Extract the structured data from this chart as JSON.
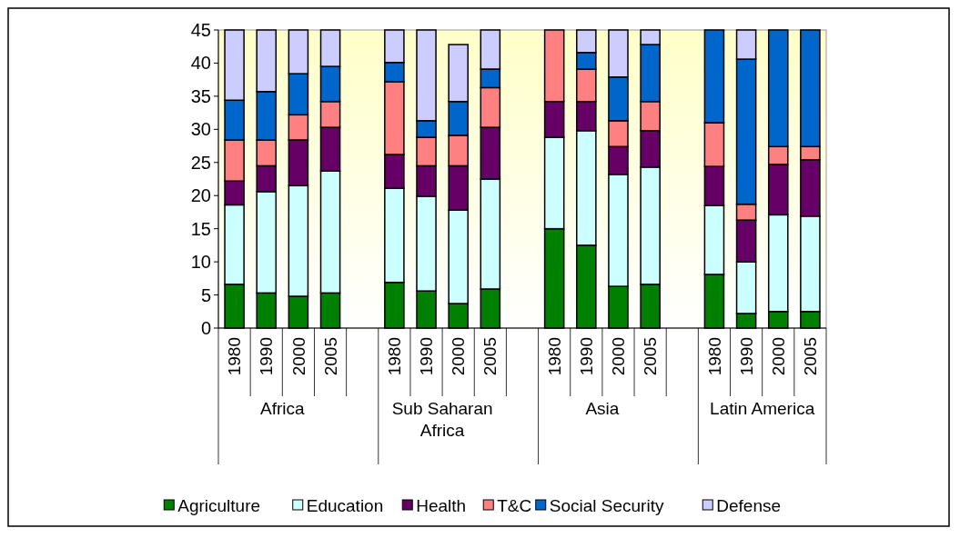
{
  "chart_data": {
    "type": "bar",
    "stacked": true,
    "categories": [
      "1980",
      "1990",
      "2000",
      "2005",
      null,
      "1980",
      "1990",
      "2000",
      "2005",
      null,
      "1980",
      "1990",
      "2000",
      "2005",
      null,
      "1980",
      "1990",
      "2000",
      "2005"
    ],
    "annotations": [
      "Africa",
      "Sub Saharan Africa",
      "Asia",
      "Latin America"
    ],
    "series": [
      {
        "name": "Agriculture",
        "color": "#008000",
        "values": [
          6.6,
          5.3,
          4.8,
          5.3,
          null,
          6.9,
          5.6,
          3.7,
          5.9,
          null,
          15.0,
          12.5,
          6.3,
          6.6,
          null,
          8.1,
          2.2,
          2.5,
          2.5
        ]
      },
      {
        "name": "Education",
        "color": "#ccffff",
        "values": [
          12.0,
          15.3,
          16.7,
          18.4,
          null,
          14.2,
          14.3,
          14.1,
          16.6,
          null,
          13.8,
          17.3,
          16.9,
          17.7,
          null,
          10.4,
          7.8,
          14.6,
          14.4
        ]
      },
      {
        "name": "Health",
        "color": "#660066",
        "values": [
          3.6,
          3.9,
          6.9,
          6.6,
          null,
          5.1,
          4.6,
          6.7,
          7.8,
          null,
          5.4,
          4.4,
          4.2,
          5.5,
          null,
          5.9,
          6.3,
          7.6,
          8.5
        ]
      },
      {
        "name": "T&C",
        "color": "#ff8080",
        "values": [
          6.2,
          3.9,
          3.8,
          3.9,
          null,
          11.0,
          4.3,
          4.6,
          6.0,
          null,
          10.8,
          4.9,
          3.9,
          4.4,
          null,
          6.6,
          2.4,
          2.7,
          2.0
        ]
      },
      {
        "name": "Social Security",
        "color": "#0066cc",
        "values": [
          6.0,
          7.3,
          6.2,
          5.3,
          null,
          2.9,
          2.5,
          5.1,
          2.8,
          null,
          0,
          2.5,
          6.6,
          8.6,
          null,
          14.0,
          21.9,
          17.6,
          17.6
        ]
      },
      {
        "name": "Defense",
        "color": "#ccccff",
        "values": [
          10.6,
          9.3,
          6.6,
          5.5,
          null,
          4.9,
          13.7,
          8.6,
          5.9,
          null,
          0,
          3.4,
          7.1,
          2.2,
          null,
          0,
          4.4,
          0,
          0
        ]
      }
    ],
    "ylim": [
      0,
      45
    ],
    "yticks": [
      0,
      5,
      10,
      15,
      20,
      25,
      30,
      35,
      40,
      45
    ],
    "legend": "bottom"
  }
}
